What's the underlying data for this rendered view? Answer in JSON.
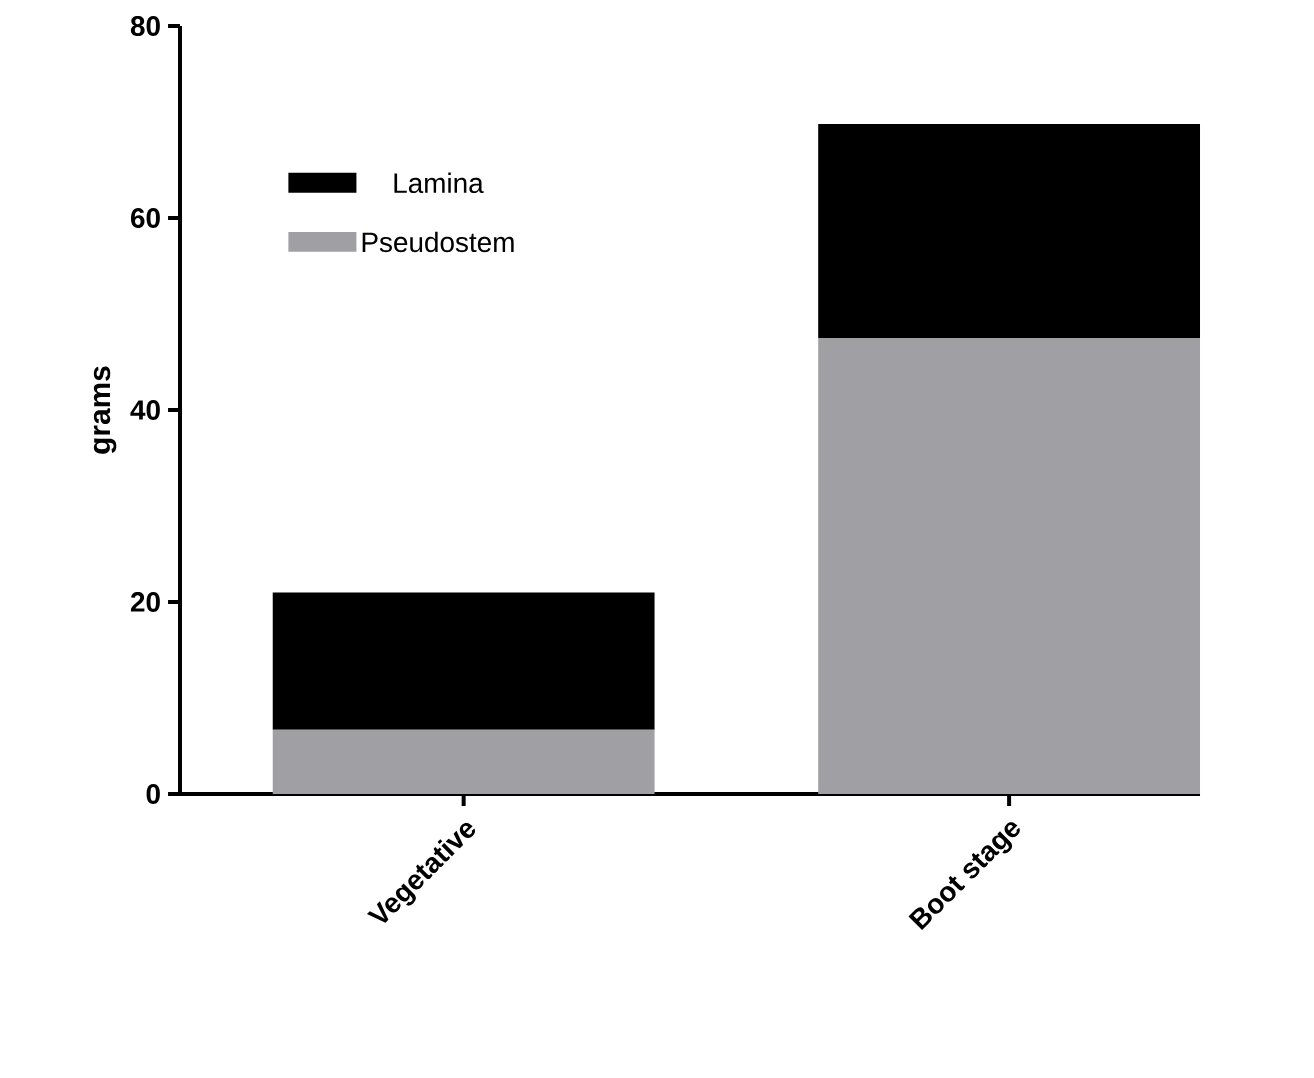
{
  "chart_data": {
    "type": "bar",
    "stacked": true,
    "ylabel": "grams",
    "categories": [
      "Vegetative",
      "Boot stage"
    ],
    "series": [
      {
        "name": "Pseudostem",
        "color": "#a0a0a4",
        "values": [
          6.7,
          47.5
        ]
      },
      {
        "name": "Lamina",
        "color": "#000000",
        "values": [
          14.3,
          22.3
        ]
      }
    ],
    "ylim": [
      0,
      80
    ],
    "yticks": [
      0,
      20,
      40,
      60,
      80
    ],
    "legend": "top left"
  }
}
